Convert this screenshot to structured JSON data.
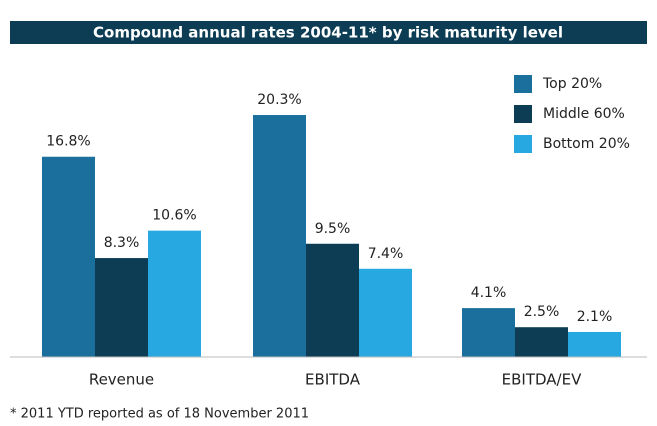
{
  "chart_data": {
    "type": "bar",
    "title": "Compound annual rates 2004-11* by risk maturity level",
    "categories": [
      "Revenue",
      "EBITDA",
      "EBITDA/EV"
    ],
    "series": [
      {
        "name": "Top 20%",
        "color": "#1a6f9c",
        "values": [
          16.8,
          20.3,
          4.1
        ],
        "value_labels": [
          "16.8%",
          "20.3%",
          "4.1%"
        ]
      },
      {
        "name": "Middle 60%",
        "color": "#0d3d55",
        "values": [
          8.3,
          9.5,
          2.5
        ],
        "value_labels": [
          "8.3%",
          "9.5%",
          "2.5%"
        ]
      },
      {
        "name": "Bottom 20%",
        "color": "#27a8e0",
        "values": [
          10.6,
          7.4,
          2.1
        ],
        "value_labels": [
          "10.6%",
          "7.4%",
          "2.1%"
        ]
      }
    ],
    "legend": "top-right",
    "footnote": "* 2011 YTD reported as of 18 November 2011"
  }
}
